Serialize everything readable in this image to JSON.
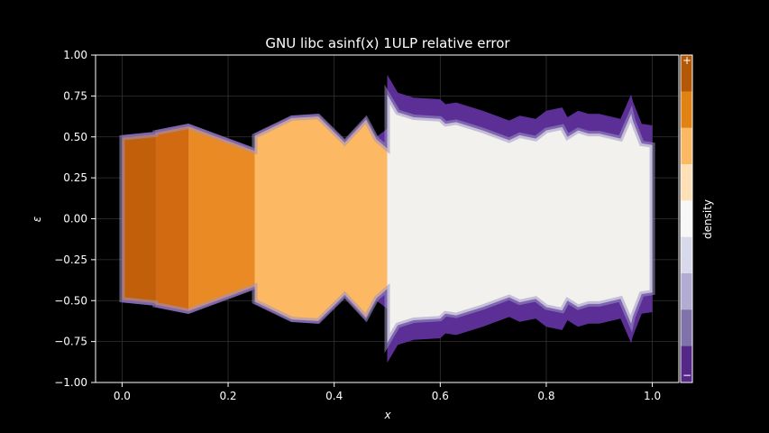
{
  "chart_data": {
    "type": "heatmap",
    "title": "GNU libc asinf(x) 1ULP relative error",
    "xlabel": "x",
    "ylabel": "ε",
    "xlim": [
      -0.05,
      1.05
    ],
    "ylim": [
      -1.0,
      1.0
    ],
    "xticks": [
      0.0,
      0.2,
      0.4,
      0.6,
      0.8,
      1.0
    ],
    "xtick_labels": [
      "0.0",
      "0.2",
      "0.4",
      "0.6",
      "0.8",
      "1.0"
    ],
    "yticks": [
      1.0,
      0.75,
      0.5,
      0.25,
      0.0,
      -0.25,
      -0.5,
      -0.75,
      -1.0
    ],
    "ytick_labels": [
      "1.00",
      "0.75",
      "0.50",
      "0.25",
      "0.00",
      "−0.25",
      "−0.50",
      "−0.75",
      "−1.00"
    ],
    "grid": true,
    "colorbar": {
      "label": "density",
      "top_label": "+",
      "bottom_label": "−",
      "colors": [
        "#b35806",
        "#e08214",
        "#fdb863",
        "#fee0b6",
        "#f7f7f7",
        "#d8daeb",
        "#b2abd2",
        "#8073ac",
        "#542788"
      ]
    },
    "envelope": {
      "x": [
        0.0,
        0.0625,
        0.0625,
        0.125,
        0.125,
        0.25,
        0.25,
        0.32,
        0.37,
        0.42,
        0.46,
        0.48,
        0.5,
        0.5,
        0.52,
        0.55,
        0.6,
        0.61,
        0.63,
        0.68,
        0.73,
        0.75,
        0.78,
        0.8,
        0.83,
        0.84,
        0.85,
        0.86,
        0.88,
        0.9,
        0.94,
        0.96,
        0.963,
        0.98,
        1.0
      ],
      "y_upper": [
        0.51,
        0.53,
        0.54,
        0.58,
        0.58,
        0.43,
        0.52,
        0.63,
        0.64,
        0.48,
        0.62,
        0.5,
        0.55,
        0.88,
        0.77,
        0.74,
        0.73,
        0.7,
        0.71,
        0.66,
        0.6,
        0.63,
        0.61,
        0.66,
        0.68,
        0.62,
        0.64,
        0.66,
        0.64,
        0.64,
        0.61,
        0.76,
        0.72,
        0.58,
        0.57
      ],
      "density_bands": [
        {
          "x0": 0.0,
          "x1": 0.0625,
          "fill": "#c15f0b"
        },
        {
          "x0": 0.0625,
          "x1": 0.125,
          "fill": "#d16a10"
        },
        {
          "x0": 0.125,
          "x1": 0.25,
          "fill": "#ea8a24"
        },
        {
          "x0": 0.25,
          "x1": 0.5,
          "fill": "#fcb862"
        },
        {
          "x0": 0.5,
          "x1": 1.0,
          "fill": "#f3f1ee"
        }
      ]
    }
  }
}
